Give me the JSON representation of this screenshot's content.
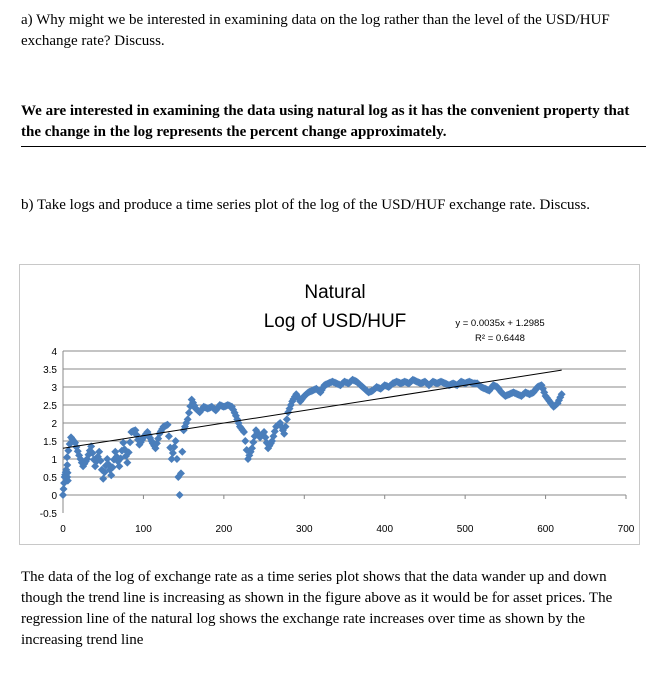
{
  "question_a": "a) Why might we be interested in examining data on the log rather than the level of the USD/HUF exchange rate? Discuss.",
  "answer_a": "We are interested in examining the data using natural log as it has the convenient property that the change in the log represents the percent change approximately.",
  "question_b": "b) Take logs and produce a time series plot of the log of the USD/HUF exchange rate. Discuss.",
  "discussion": "The data of the log of exchange rate as a time series plot shows that the data wander up and down though the trend line is increasing as shown in the figure above as it would be for asset prices. The regression line of the natural log shows the exchange rate increases over time as shown by the increasing trend line",
  "chart_data": {
    "type": "scatter",
    "title_line1": "Natural",
    "title_line2": "Log of USD/HUF",
    "xlabel": "",
    "ylabel": "",
    "xlim": [
      0,
      700
    ],
    "ylim": [
      -0.5,
      4
    ],
    "xticks": [
      "0",
      "100",
      "200",
      "300",
      "400",
      "500",
      "600",
      "700"
    ],
    "yticks": [
      "-0.5",
      "0",
      "0.5",
      "1",
      "1.5",
      "2",
      "2.5",
      "3",
      "3.5",
      "4"
    ],
    "grid": true,
    "marker_color": "#4a7ebb",
    "x": [
      0,
      2,
      4,
      6,
      5,
      10,
      15,
      20,
      25,
      30,
      35,
      40,
      45,
      50,
      55,
      60,
      65,
      70,
      75,
      80,
      85,
      90,
      95,
      100,
      105,
      110,
      115,
      120,
      125,
      130,
      135,
      140,
      145,
      150,
      155,
      160,
      165,
      170,
      175,
      180,
      185,
      190,
      195,
      200,
      205,
      210,
      215,
      220,
      225,
      230,
      235,
      240,
      245,
      250,
      255,
      260,
      265,
      270,
      275,
      280,
      285,
      290,
      295,
      300,
      305,
      310,
      315,
      320,
      325,
      330,
      335,
      340,
      345,
      350,
      355,
      360,
      365,
      370,
      375,
      380,
      385,
      390,
      395,
      400,
      405,
      410,
      415,
      420,
      425,
      430,
      435,
      440,
      445,
      450,
      455,
      460,
      465,
      470,
      475,
      480,
      485,
      490,
      495,
      500,
      505,
      510,
      515,
      520,
      525,
      530,
      535,
      540,
      545,
      550,
      555,
      560,
      565,
      570,
      575,
      580,
      585,
      590,
      595,
      600,
      605,
      610,
      615,
      620
    ],
    "y": [
      0,
      0.5,
      0.7,
      0.4,
      1.05,
      1.6,
      1.45,
      1.1,
      0.8,
      1.0,
      1.35,
      0.8,
      1.2,
      0.45,
      1.0,
      0.55,
      1.2,
      0.8,
      1.45,
      0.9,
      1.75,
      1.8,
      1.4,
      1.6,
      1.75,
      1.5,
      1.3,
      1.7,
      1.9,
      1.95,
      1.0,
      1.5,
      0.0,
      1.8,
      2.1,
      2.65,
      2.4,
      2.3,
      2.45,
      2.4,
      2.45,
      2.35,
      2.5,
      2.45,
      2.5,
      2.45,
      2.2,
      1.9,
      1.75,
      1.0,
      1.3,
      1.8,
      1.6,
      1.75,
      1.3,
      1.5,
      1.9,
      2.0,
      1.7,
      2.3,
      2.6,
      2.8,
      2.6,
      2.75,
      2.85,
      2.9,
      2.95,
      2.85,
      3.05,
      3.1,
      3.15,
      3.1,
      3.05,
      3.15,
      3.1,
      3.2,
      3.15,
      3.05,
      2.95,
      2.85,
      2.9,
      3.0,
      2.95,
      3.05,
      3.0,
      3.1,
      3.15,
      3.1,
      3.15,
      3.1,
      3.2,
      3.15,
      3.1,
      3.15,
      3.05,
      3.15,
      3.1,
      3.15,
      3.1,
      3.05,
      3.1,
      3.05,
      3.15,
      3.1,
      3.15,
      3.1,
      3.1,
      3.0,
      2.95,
      2.9,
      3.05,
      3.0,
      2.85,
      2.75,
      2.8,
      2.85,
      2.8,
      2.75,
      2.85,
      2.8,
      2.85,
      3.0,
      3.05,
      2.75,
      2.6,
      2.45,
      2.55,
      2.8
    ],
    "trendline": {
      "slope": 0.0035,
      "intercept": 1.2985,
      "x_range": [
        0,
        620
      ],
      "equation": "y = 0.0035x + 1.2985",
      "r2_label": "R² = 0.6448"
    }
  }
}
